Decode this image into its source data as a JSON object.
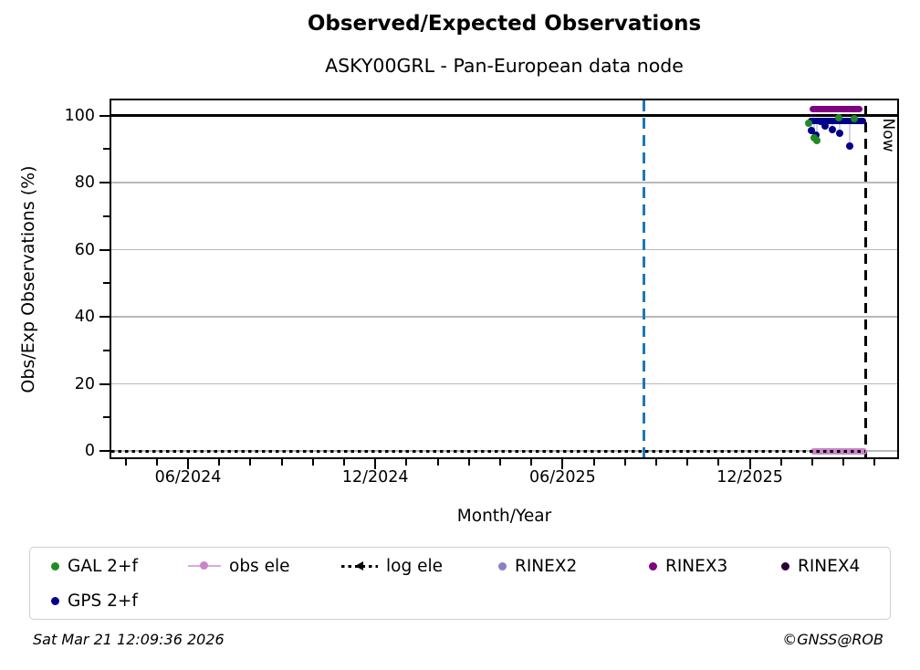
{
  "figure": {
    "title": "Observed/Expected Observations",
    "subtitle": "ASKY00GRL - Pan-European data node",
    "timestamp": "Sat Mar 21 12:09:36 2026",
    "copyright": "©GNSS@ROB"
  },
  "axes": {
    "ylabel": "Obs/Exp Observations (%)",
    "xlabel": "Month/Year",
    "now_label": "Now",
    "y_ticks": [
      0,
      20,
      40,
      60,
      80,
      100
    ],
    "y_minor": [
      10,
      30,
      50,
      70,
      90
    ],
    "x_ticks": [
      {
        "label": "06/2024",
        "m": 0
      },
      {
        "label": "12/2024",
        "m": 6
      },
      {
        "label": "06/2025",
        "m": 12
      },
      {
        "label": "12/2025",
        "m": 18
      }
    ],
    "x_minor_month_range": [
      -2,
      22
    ]
  },
  "chart_data": {
    "type": "scatter",
    "title": "Observed/Expected Observations",
    "subtitle": "ASKY00GRL - Pan-European data node",
    "xlabel": "Month/Year",
    "ylabel": "Obs/Exp Observations (%)",
    "x_tick_labels": [
      "06/2024",
      "12/2024",
      "06/2025",
      "12/2025"
    ],
    "ylim": [
      -1.6,
      104.5
    ],
    "grid": true,
    "m_definition": "months after 06/2024",
    "xlim_m": [
      -2.6,
      22.6
    ],
    "reference_line_pct": 100,
    "boundary_month": 14.6,
    "boundary_color": "#1f77b4",
    "now_month": 21.7,
    "now_date": "03/21/2026",
    "series": [
      {
        "name": "GPS 2+f",
        "color": "#00008B",
        "band": {
          "from": 19.85,
          "to": 21.73,
          "value": 98.4
        },
        "outliers": [
          [
            19.97,
            95.4
          ],
          [
            20.12,
            94.1
          ],
          [
            20.26,
            98.1
          ],
          [
            20.41,
            96.8
          ],
          [
            20.64,
            95.7
          ],
          [
            20.88,
            94.6
          ],
          [
            21.2,
            90.8
          ]
        ]
      },
      {
        "name": "GAL 2+f",
        "color": "#228B22",
        "band": null,
        "outliers": [
          [
            19.88,
            97.6
          ],
          [
            20.06,
            93.2
          ],
          [
            20.15,
            92.4
          ],
          [
            20.85,
            99.2
          ],
          [
            21.35,
            99.1
          ]
        ]
      },
      {
        "name": "RINEX3",
        "color": "#800080",
        "band": {
          "from": 19.9,
          "to": 21.62,
          "value": 102.0
        },
        "outliers": []
      },
      {
        "name": "obs ele",
        "color": "#C985C9",
        "band": {
          "from": 19.95,
          "to": 21.75,
          "value": 0.0
        },
        "outliers": []
      },
      {
        "name": "log ele",
        "color": "#000000",
        "line": {
          "from": -2.6,
          "to": 21.7,
          "value": 0.0,
          "style": "dotted"
        },
        "outliers": []
      },
      {
        "name": "RINEX2",
        "color": "#8D7EC6",
        "outliers": []
      },
      {
        "name": "RINEX4",
        "color": "#2B0033",
        "outliers": []
      }
    ]
  },
  "legend": {
    "items": [
      {
        "label": "GAL 2+f",
        "marker": "dot",
        "color": "#228B22"
      },
      {
        "label": "obs ele",
        "marker": "line-dot",
        "color": "#C985C9",
        "line_color": "#DCA9DC"
      },
      {
        "label": "log ele",
        "marker": "dotted-caret",
        "color": "#000000"
      },
      {
        "label": "RINEX2",
        "marker": "dot",
        "color": "#8D7EC6"
      },
      {
        "label": "RINEX3",
        "marker": "dot",
        "color": "#800080"
      },
      {
        "label": "RINEX4",
        "marker": "dot",
        "color": "#2B0033"
      },
      {
        "label": "GPS 2+f",
        "marker": "dot",
        "color": "#00008B"
      }
    ]
  },
  "colors": {
    "grid": "#b9b9b9",
    "stem": "#d4d4e4",
    "reference_line": "#000000"
  }
}
